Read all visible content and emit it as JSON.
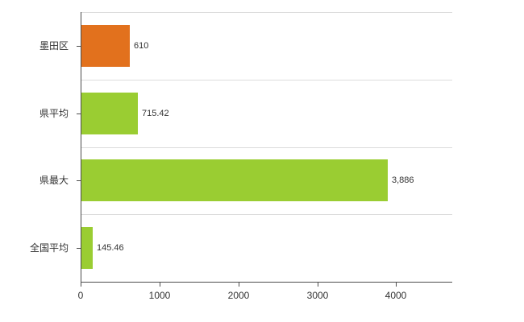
{
  "chart_data": {
    "type": "bar",
    "orientation": "horizontal",
    "title": "",
    "xlabel": "",
    "ylabel": "",
    "categories": [
      "墨田区",
      "県平均",
      "県最大",
      "全国平均"
    ],
    "values": [
      610,
      715.42,
      3886,
      145.46
    ],
    "value_labels": [
      "610",
      "715.42",
      "3,886",
      "145.46"
    ],
    "bar_colors": [
      "#e2711d",
      "#9acd32",
      "#9acd32",
      "#9acd32"
    ],
    "x_ticks": [
      0,
      1000,
      2000,
      3000,
      4000
    ],
    "x_tick_labels": [
      "0",
      "1000",
      "2000",
      "3000",
      "4000"
    ],
    "xlim": [
      0,
      4700
    ],
    "grid": "horizontal band lines",
    "legend": "none"
  },
  "colors": {
    "axis": "#4d4d4d",
    "gridline": "#dcdcdc",
    "text": "#333333",
    "background": "#ffffff"
  }
}
